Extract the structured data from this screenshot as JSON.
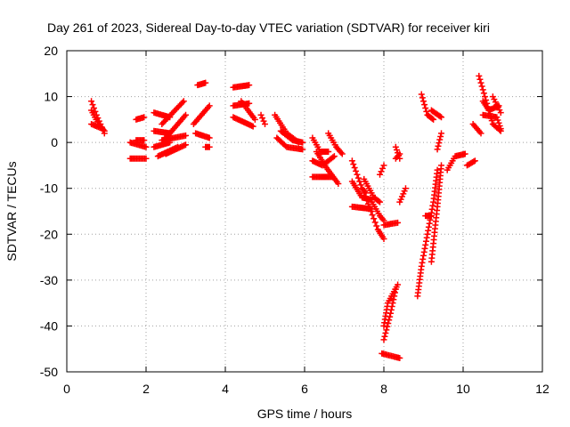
{
  "chart_data": {
    "type": "scatter",
    "title": "Day 261 of 2023, Sidereal Day-to-day VTEC variation (SDTVAR) for receiver kiri",
    "xlabel": "GPS time / hours",
    "ylabel": "SDTVAR / TECUs",
    "xlim": [
      0,
      12
    ],
    "ylim": [
      -50,
      20
    ],
    "xticks": [
      0,
      2,
      4,
      6,
      8,
      10,
      12
    ],
    "yticks": [
      -50,
      -40,
      -30,
      -20,
      -10,
      0,
      10,
      20
    ],
    "grid": true,
    "marker": "+",
    "colors": {
      "series": "#ff0000",
      "grid": "#a0a0a0",
      "axis": "#000000"
    },
    "series": [
      {
        "segments": [
          [
            [
              0.62,
              9
            ],
            [
              0.75,
              6
            ],
            [
              0.95,
              2
            ]
          ],
          [
            [
              0.62,
              7
            ],
            [
              0.8,
              4
            ],
            [
              0.95,
              2.5
            ]
          ],
          [
            [
              0.62,
              4
            ],
            [
              0.9,
              3
            ]
          ],
          [
            [
              1.6,
              0
            ],
            [
              2.0,
              -1
            ]
          ],
          [
            [
              1.6,
              -3.5
            ],
            [
              2.0,
              -3.5
            ]
          ],
          [
            [
              1.75,
              5
            ],
            [
              1.95,
              5.5
            ]
          ],
          [
            [
              1.75,
              0.5
            ],
            [
              1.95,
              0.5
            ]
          ],
          [
            [
              2.2,
              6.5
            ],
            [
              2.6,
              5.5
            ]
          ],
          [
            [
              2.2,
              2.5
            ],
            [
              2.6,
              2
            ]
          ],
          [
            [
              2.2,
              -1
            ],
            [
              2.6,
              0
            ]
          ],
          [
            [
              2.3,
              -3
            ],
            [
              2.8,
              -1
            ]
          ],
          [
            [
              2.4,
              0.5
            ],
            [
              3.0,
              1.5
            ]
          ],
          [
            [
              2.4,
              4
            ],
            [
              2.95,
              9
            ]
          ],
          [
            [
              2.5,
              1
            ],
            [
              3.0,
              6
            ]
          ],
          [
            [
              2.5,
              -2.5
            ],
            [
              3.0,
              -0.5
            ]
          ],
          [
            [
              3.3,
              12.5
            ],
            [
              3.5,
              13
            ]
          ],
          [
            [
              3.2,
              4
            ],
            [
              3.6,
              8
            ]
          ],
          [
            [
              3.25,
              2
            ],
            [
              3.6,
              1
            ]
          ],
          [
            [
              3.5,
              -1
            ],
            [
              3.6,
              -1
            ]
          ],
          [
            [
              4.2,
              12
            ],
            [
              4.6,
              12.5
            ]
          ],
          [
            [
              4.2,
              8
            ],
            [
              4.6,
              8.5
            ]
          ],
          [
            [
              4.2,
              5.5
            ],
            [
              4.7,
              3.5
            ]
          ],
          [
            [
              4.4,
              9
            ],
            [
              4.75,
              5
            ]
          ],
          [
            [
              4.9,
              6
            ],
            [
              5.0,
              4
            ]
          ],
          [
            [
              5.25,
              6
            ],
            [
              5.55,
              2
            ],
            [
              5.85,
              0
            ]
          ],
          [
            [
              5.3,
              1
            ],
            [
              5.55,
              -1
            ],
            [
              5.95,
              -1.5
            ]
          ],
          [
            [
              5.4,
              2.5
            ],
            [
              5.7,
              0.5
            ],
            [
              5.95,
              0
            ]
          ],
          [
            [
              6.2,
              1
            ],
            [
              6.4,
              -2
            ],
            [
              6.6,
              -2
            ]
          ],
          [
            [
              6.2,
              -4
            ],
            [
              6.45,
              -5
            ],
            [
              6.75,
              -3
            ]
          ],
          [
            [
              6.2,
              -7.5
            ],
            [
              6.7,
              -7.5
            ]
          ],
          [
            [
              6.3,
              -2
            ],
            [
              6.55,
              -5.5
            ],
            [
              6.85,
              -9
            ]
          ],
          [
            [
              6.6,
              2
            ],
            [
              6.8,
              -1
            ],
            [
              6.95,
              -2.5
            ]
          ],
          [
            [
              7.2,
              -4
            ],
            [
              7.45,
              -10
            ],
            [
              7.55,
              -11
            ]
          ],
          [
            [
              7.2,
              -8.5
            ],
            [
              7.45,
              -12
            ],
            [
              7.7,
              -12.5
            ]
          ],
          [
            [
              7.2,
              -14
            ],
            [
              7.7,
              -14.5
            ]
          ],
          [
            [
              7.5,
              -8
            ],
            [
              7.75,
              -12
            ],
            [
              7.9,
              -13
            ]
          ],
          [
            [
              7.7,
              -13
            ],
            [
              7.9,
              -16
            ],
            [
              8.0,
              -17
            ]
          ],
          [
            [
              7.5,
              -11
            ],
            [
              7.85,
              -19
            ],
            [
              8.0,
              -21
            ]
          ],
          [
            [
              7.9,
              -7
            ],
            [
              8.0,
              -5
            ]
          ],
          [
            [
              8.0,
              -18
            ],
            [
              8.35,
              -17.5
            ]
          ],
          [
            [
              8.0,
              -40
            ],
            [
              8.1,
              -35
            ],
            [
              8.35,
              -31
            ]
          ],
          [
            [
              8.0,
              -43
            ],
            [
              8.15,
              -38
            ],
            [
              8.3,
              -32
            ]
          ],
          [
            [
              7.95,
              -46
            ],
            [
              8.4,
              -47
            ]
          ],
          [
            [
              8.3,
              -1
            ],
            [
              8.4,
              -3.5
            ]
          ],
          [
            [
              8.3,
              -3.5
            ],
            [
              8.4,
              -2.5
            ]
          ],
          [
            [
              8.4,
              -13
            ],
            [
              8.55,
              -10
            ]
          ],
          [
            [
              8.85,
              -33.5
            ],
            [
              8.95,
              -27
            ],
            [
              9.1,
              -20
            ],
            [
              9.25,
              -13
            ],
            [
              9.35,
              -6
            ]
          ],
          [
            [
              9.05,
              -16
            ],
            [
              9.2,
              -16
            ]
          ],
          [
            [
              9.2,
              -26
            ],
            [
              9.35,
              -14
            ],
            [
              9.45,
              -5
            ]
          ],
          [
            [
              9.35,
              -1.5
            ],
            [
              9.45,
              2
            ]
          ],
          [
            [
              8.95,
              10.5
            ],
            [
              9.1,
              6
            ],
            [
              9.25,
              5
            ]
          ],
          [
            [
              9.2,
              7
            ],
            [
              9.45,
              5.5
            ]
          ],
          [
            [
              9.6,
              -6
            ],
            [
              9.8,
              -3
            ],
            [
              10.05,
              -2.5
            ]
          ],
          [
            [
              10.1,
              -5
            ],
            [
              10.3,
              -4
            ]
          ],
          [
            [
              10.25,
              4
            ],
            [
              10.45,
              2
            ]
          ],
          [
            [
              10.4,
              14.5
            ],
            [
              10.55,
              10
            ],
            [
              10.75,
              4
            ],
            [
              10.95,
              2.5
            ]
          ],
          [
            [
              10.5,
              9
            ],
            [
              10.65,
              7
            ],
            [
              10.9,
              8
            ]
          ],
          [
            [
              10.5,
              6
            ],
            [
              10.85,
              5.5
            ],
            [
              10.95,
              3
            ]
          ],
          [
            [
              10.75,
              10
            ],
            [
              10.95,
              6.5
            ]
          ]
        ]
      }
    ]
  }
}
